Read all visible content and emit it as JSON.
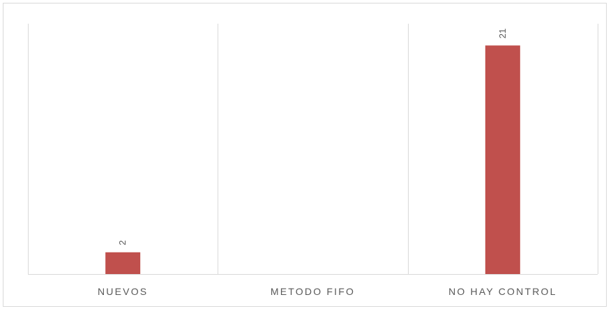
{
  "chart_data": {
    "type": "bar",
    "categories": [
      "NUEVOS",
      "METODO FIFO",
      "NO HAY CONTROL"
    ],
    "values": [
      2,
      0,
      21
    ],
    "data_labels": [
      "2",
      "",
      "21"
    ],
    "ylim": [
      0,
      23
    ],
    "grid": "vertical-category-separators",
    "bar_color": "#c0504d",
    "title": "",
    "xlabel": "",
    "ylabel": ""
  }
}
